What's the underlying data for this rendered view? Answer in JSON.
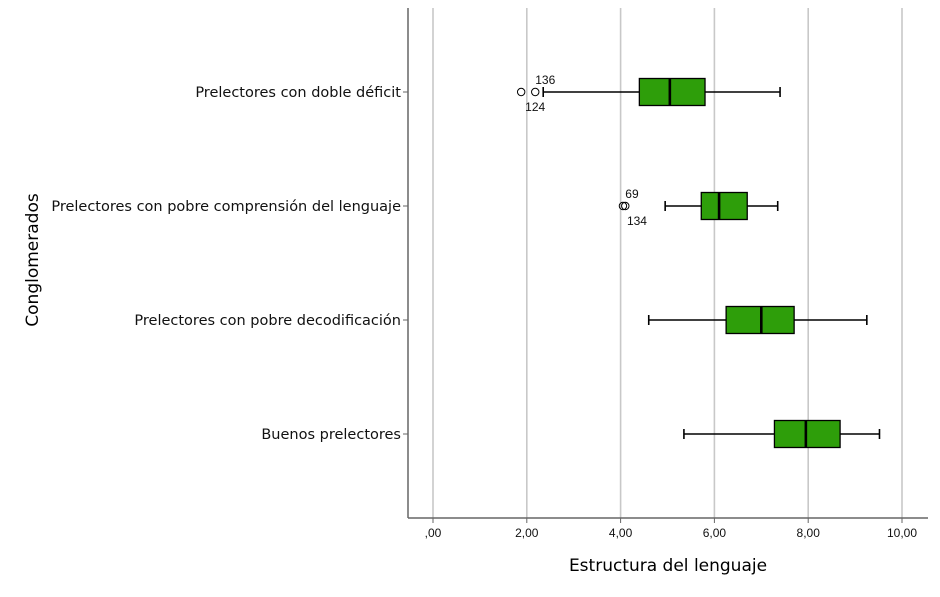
{
  "chart_data": {
    "type": "boxplot",
    "orientation": "horizontal",
    "xlabel": "Estructura del lenguaje",
    "ylabel": "Conglomerados",
    "xlim": [
      0,
      10
    ],
    "x_ticks": [
      0,
      2,
      4,
      6,
      8,
      10
    ],
    "x_tick_labels": [
      ",00",
      "2,00",
      "4,00",
      "6,00",
      "8,00",
      "10,00"
    ],
    "grid": "vertical",
    "box_color": "#2e9e0a",
    "series": [
      {
        "name": "Prelectores con doble déficit",
        "whisker_low": 2.35,
        "q1": 4.4,
        "median": 5.05,
        "q3": 5.8,
        "whisker_high": 7.4,
        "outliers": [
          {
            "value": 2.18,
            "label": "136"
          },
          {
            "value": 1.88,
            "label": "124"
          }
        ]
      },
      {
        "name": "Prelectores con pobre comprensión del lenguaje",
        "whisker_low": 4.95,
        "q1": 5.72,
        "median": 6.1,
        "q3": 6.7,
        "whisker_high": 7.35,
        "outliers": [
          {
            "value": 4.1,
            "label": "69"
          },
          {
            "value": 4.05,
            "label": "134"
          }
        ]
      },
      {
        "name": "Prelectores con pobre decodificación",
        "whisker_low": 4.6,
        "q1": 6.25,
        "median": 7.0,
        "q3": 7.7,
        "whisker_high": 9.25,
        "outliers": []
      },
      {
        "name": "Buenos prelectores",
        "whisker_low": 5.35,
        "q1": 7.28,
        "median": 7.95,
        "q3": 8.68,
        "whisker_high": 9.52,
        "outliers": []
      }
    ]
  }
}
